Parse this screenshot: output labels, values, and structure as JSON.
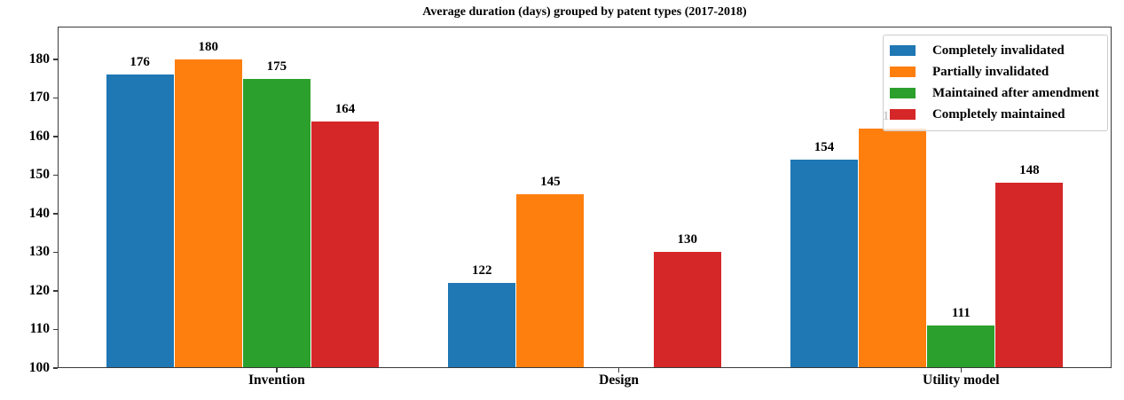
{
  "chart_data": {
    "type": "bar",
    "title": "Average duration (days) grouped by patent types (2017-2018)",
    "categories": [
      "Invention",
      "Design",
      "Utility model"
    ],
    "series": [
      {
        "name": "Completely invalidated",
        "color": "#1f77b4",
        "values": [
          176,
          122,
          154
        ]
      },
      {
        "name": "Partially invalidated",
        "color": "#ff7f0e",
        "values": [
          180,
          145,
          162
        ]
      },
      {
        "name": "Maintained after amendment",
        "color": "#2ca02c",
        "values": [
          175,
          null,
          111
        ]
      },
      {
        "name": "Completely maintained",
        "color": "#d62728",
        "values": [
          164,
          130,
          148
        ]
      }
    ],
    "bar_labels": true,
    "baseline": 100,
    "ylim": [
      100,
      188.5
    ],
    "yticks": [
      100,
      110,
      120,
      130,
      140,
      150,
      160,
      170,
      180
    ],
    "xlabel": "",
    "ylabel": "",
    "grid": false,
    "legend": {
      "position": "upper right",
      "entries": [
        "Completely invalidated",
        "Partially invalidated",
        "Maintained after amendment",
        "Completely maintained"
      ]
    }
  }
}
